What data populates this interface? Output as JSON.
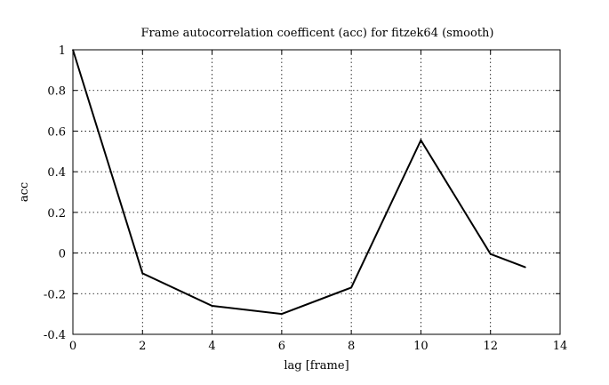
{
  "chart_data": {
    "type": "line",
    "title": "Frame autocorrelation coefficent (acc) for fitzek64 (smooth)",
    "xlabel": "lag [frame]",
    "ylabel": "acc",
    "xlim": [
      0,
      14
    ],
    "ylim": [
      -0.4,
      1
    ],
    "xticks": [
      0,
      2,
      4,
      6,
      8,
      10,
      12,
      14
    ],
    "yticks": [
      -0.4,
      -0.2,
      0,
      0.2,
      0.4,
      0.6,
      0.8,
      1
    ],
    "xtick_labels": [
      "0",
      "2",
      "4",
      "6",
      "8",
      "10",
      "12",
      "14"
    ],
    "ytick_labels": [
      "-0.4",
      "-0.2",
      "0",
      "0.2",
      "0.4",
      "0.6",
      "0.8",
      "1"
    ],
    "grid": true,
    "series": [
      {
        "x": [
          0,
          2,
          4,
          6,
          8,
          10,
          12,
          13
        ],
        "values": [
          1.0,
          -0.1,
          -0.26,
          -0.3,
          -0.17,
          0.555,
          -0.005,
          -0.07
        ]
      }
    ]
  }
}
